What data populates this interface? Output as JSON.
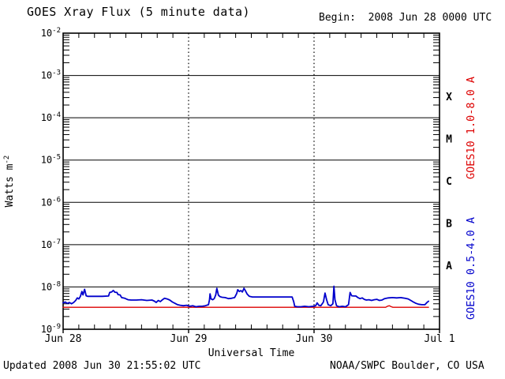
{
  "header": {
    "title": "GOES Xray Flux (5 minute data)",
    "begin_label": "Begin:  2008 Jun 28 0000 UTC"
  },
  "footer": {
    "updated": "Updated 2008 Jun 30 21:55:02 UTC",
    "credit": "NOAA/SWPC Boulder, CO USA"
  },
  "colors": {
    "frame": "#000000",
    "long_channel_red": "#dd0000",
    "short_channel_blue": "#0000cc"
  },
  "chart_data": {
    "type": "line",
    "title": "GOES Xray Flux (5 minute data)",
    "xlabel": "Universal Time",
    "ylabel_base": "Watts m",
    "ylabel_exponent": "-2",
    "x_unit": "hours since 2008 Jun 28 0000 UTC",
    "xlim_hours": [
      0,
      72
    ],
    "ylim": [
      1e-09,
      0.01
    ],
    "y_scale": "log",
    "grid": {
      "horizontal_decade_lines": true,
      "vertical_day_lines_dotted": true
    },
    "y_tick_exponents": [
      -2,
      -3,
      -4,
      -5,
      -6,
      -7,
      -8,
      -9
    ],
    "x_ticks": [
      {
        "hours": 0,
        "label": "Jun 28"
      },
      {
        "hours": 24,
        "label": "Jun 29"
      },
      {
        "hours": 48,
        "label": "Jun 30"
      },
      {
        "hours": 72,
        "label": "Jul 1"
      }
    ],
    "x_minor_tick_hours": 3,
    "day_gridline_hours": [
      24,
      48
    ],
    "flare_classes": [
      {
        "label": "X",
        "band_exponents": [
          -4,
          -3
        ]
      },
      {
        "label": "M",
        "band_exponents": [
          -5,
          -4
        ]
      },
      {
        "label": "C",
        "band_exponents": [
          -6,
          -5
        ]
      },
      {
        "label": "B",
        "band_exponents": [
          -7,
          -6
        ]
      },
      {
        "label": "A",
        "band_exponents": [
          -8,
          -7
        ]
      }
    ],
    "series": [
      {
        "name": "GOES10 long",
        "axis_label": "GOES10 1.0-8.0 A",
        "color": "#dd0000",
        "points": [
          [
            0,
            3.3e-09
          ],
          [
            8,
            3.3e-09
          ],
          [
            16,
            3.3e-09
          ],
          [
            24,
            3.3e-09
          ],
          [
            32,
            3.3e-09
          ],
          [
            40,
            3.3e-09
          ],
          [
            48,
            3.3e-09
          ],
          [
            56,
            3.3e-09
          ],
          [
            61.7,
            3.3e-09
          ],
          [
            62.0,
            3.5e-09
          ],
          [
            62.4,
            3.6e-09
          ],
          [
            62.8,
            3.4e-09
          ],
          [
            63.1,
            3.3e-09
          ],
          [
            66,
            3.3e-09
          ],
          [
            69.9,
            3.3e-09
          ]
        ]
      },
      {
        "name": "GOES10 short",
        "axis_label": "GOES10 0.5-4.0 A",
        "color": "#0000cc",
        "points": [
          [
            0,
            4.2e-09
          ],
          [
            0.4,
            4.4e-09
          ],
          [
            0.8,
            4.1e-09
          ],
          [
            1.2,
            4.3e-09
          ],
          [
            1.6,
            4e-09
          ],
          [
            2.0,
            4.3e-09
          ],
          [
            2.4,
            4.8e-09
          ],
          [
            2.7,
            5.5e-09
          ],
          [
            3.0,
            5.2e-09
          ],
          [
            3.3,
            6e-09
          ],
          [
            3.6,
            7.8e-09
          ],
          [
            3.8,
            6.5e-09
          ],
          [
            4.1,
            8.8e-09
          ],
          [
            4.4,
            6.2e-09
          ],
          [
            4.7,
            6e-09
          ],
          [
            6.0,
            6e-09
          ],
          [
            7.5,
            6e-09
          ],
          [
            8.7,
            6.1e-09
          ],
          [
            8.9,
            7.4e-09
          ],
          [
            9.3,
            7.6e-09
          ],
          [
            9.6,
            8.3e-09
          ],
          [
            9.9,
            7.5e-09
          ],
          [
            10.3,
            7.4e-09
          ],
          [
            10.5,
            6.6e-09
          ],
          [
            10.9,
            6.5e-09
          ],
          [
            11.2,
            5.6e-09
          ],
          [
            11.8,
            5.4e-09
          ],
          [
            12.4,
            5e-09
          ],
          [
            13,
            4.9e-09
          ],
          [
            14,
            4.9e-09
          ],
          [
            15,
            5e-09
          ],
          [
            16,
            4.8e-09
          ],
          [
            17,
            4.9e-09
          ],
          [
            17.5,
            4.6e-09
          ],
          [
            17.8,
            4.3e-09
          ],
          [
            18.2,
            4.8e-09
          ],
          [
            18.6,
            4.5e-09
          ],
          [
            19.0,
            5e-09
          ],
          [
            19.4,
            5.4e-09
          ],
          [
            19.9,
            5.2e-09
          ],
          [
            20.4,
            4.9e-09
          ],
          [
            20.9,
            4.4e-09
          ],
          [
            21.4,
            4.1e-09
          ],
          [
            21.9,
            3.8e-09
          ],
          [
            22.4,
            3.7e-09
          ],
          [
            23.0,
            3.6e-09
          ],
          [
            23.6,
            3.7e-09
          ],
          [
            24.2,
            3.5e-09
          ],
          [
            24.8,
            3.6e-09
          ],
          [
            25.4,
            3.4e-09
          ],
          [
            26.0,
            3.5e-09
          ],
          [
            26.6,
            3.5e-09
          ],
          [
            27.2,
            3.6e-09
          ],
          [
            27.8,
            3.8e-09
          ],
          [
            28.0,
            5e-09
          ],
          [
            28.1,
            6.9e-09
          ],
          [
            28.3,
            5.2e-09
          ],
          [
            28.6,
            5e-09
          ],
          [
            28.9,
            5.3e-09
          ],
          [
            29.2,
            6.5e-09
          ],
          [
            29.4,
            9.3e-09
          ],
          [
            29.7,
            6.4e-09
          ],
          [
            30.0,
            5.9e-09
          ],
          [
            30.4,
            5.7e-09
          ],
          [
            31.0,
            5.6e-09
          ],
          [
            31.6,
            5.3e-09
          ],
          [
            32.2,
            5.4e-09
          ],
          [
            32.8,
            5.6e-09
          ],
          [
            33.2,
            7e-09
          ],
          [
            33.4,
            8.6e-09
          ],
          [
            33.7,
            7.8e-09
          ],
          [
            34.0,
            8.2e-09
          ],
          [
            34.3,
            7.6e-09
          ],
          [
            34.6,
            9.3e-09
          ],
          [
            34.9,
            8e-09
          ],
          [
            35.2,
            6.8e-09
          ],
          [
            35.6,
            6e-09
          ],
          [
            36.2,
            5.8e-09
          ],
          [
            38,
            5.8e-09
          ],
          [
            40,
            5.8e-09
          ],
          [
            42,
            5.8e-09
          ],
          [
            43.8,
            5.8e-09
          ],
          [
            44.1,
            4.5e-09
          ],
          [
            44.3,
            3.5e-09
          ],
          [
            44.8,
            3.4e-09
          ],
          [
            45.5,
            3.4e-09
          ],
          [
            46.2,
            3.5e-09
          ],
          [
            47.0,
            3.4e-09
          ],
          [
            47.8,
            3.5e-09
          ],
          [
            48.3,
            3.6e-09
          ],
          [
            48.6,
            4.2e-09
          ],
          [
            48.9,
            3.7e-09
          ],
          [
            49.3,
            3.6e-09
          ],
          [
            49.8,
            4.4e-09
          ],
          [
            50.1,
            7.2e-09
          ],
          [
            50.4,
            5e-09
          ],
          [
            50.7,
            3.8e-09
          ],
          [
            51.2,
            3.6e-09
          ],
          [
            51.6,
            4e-09
          ],
          [
            51.8,
            1.04e-08
          ],
          [
            52.0,
            5e-09
          ],
          [
            52.3,
            3.6e-09
          ],
          [
            52.8,
            3.4e-09
          ],
          [
            53.4,
            3.5e-09
          ],
          [
            54.0,
            3.4e-09
          ],
          [
            54.6,
            3.8e-09
          ],
          [
            54.9,
            7.4e-09
          ],
          [
            55.2,
            6.2e-09
          ],
          [
            55.6,
            6.1e-09
          ],
          [
            56.0,
            6.1e-09
          ],
          [
            56.4,
            5.6e-09
          ],
          [
            56.8,
            5.3e-09
          ],
          [
            57.2,
            5.5e-09
          ],
          [
            57.6,
            5.1e-09
          ],
          [
            58.0,
            4.9e-09
          ],
          [
            58.5,
            5e-09
          ],
          [
            59.0,
            4.8e-09
          ],
          [
            59.5,
            5e-09
          ],
          [
            60.0,
            5.1e-09
          ],
          [
            60.5,
            4.8e-09
          ],
          [
            61.0,
            4.9e-09
          ],
          [
            61.5,
            5.3e-09
          ],
          [
            62.2,
            5.5e-09
          ],
          [
            63.0,
            5.6e-09
          ],
          [
            63.8,
            5.5e-09
          ],
          [
            64.6,
            5.6e-09
          ],
          [
            65.4,
            5.4e-09
          ],
          [
            66.0,
            5.2e-09
          ],
          [
            66.5,
            4.8e-09
          ],
          [
            67.0,
            4.4e-09
          ],
          [
            67.5,
            4.1e-09
          ],
          [
            68.0,
            3.9e-09
          ],
          [
            68.6,
            3.8e-09
          ],
          [
            69.2,
            3.8e-09
          ],
          [
            69.6,
            4.3e-09
          ],
          [
            69.9,
            4.6e-09
          ]
        ]
      }
    ]
  }
}
